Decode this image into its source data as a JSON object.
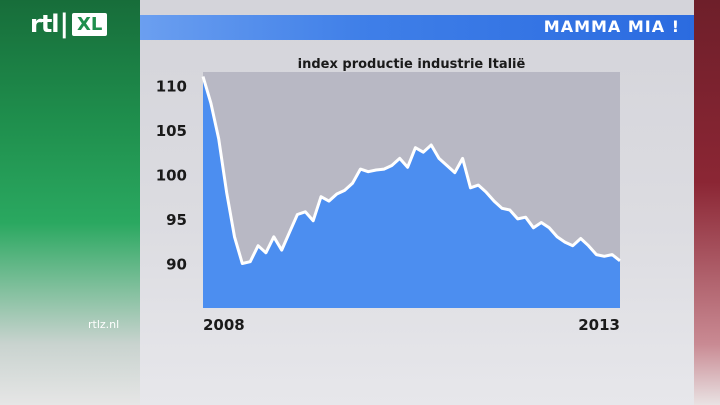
{
  "brand": {
    "logo_main": "rtl",
    "logo_badge": "XL",
    "site": "rtlz.nl"
  },
  "header": {
    "title": "MAMMA MIA !"
  },
  "chart_data": {
    "type": "area",
    "title": "index productie industrie Italië",
    "xlabel": "",
    "ylabel": "",
    "x_tick_labels": [
      "2008",
      "2013"
    ],
    "y_ticks": [
      90,
      95,
      100,
      105,
      110
    ],
    "ylim": [
      85.0,
      111.5
    ],
    "grid": false,
    "series": [
      {
        "values": [
          111.0,
          108.0,
          104.0,
          98.0,
          93.0,
          90.0,
          90.2,
          92.0,
          91.2,
          93.0,
          91.5,
          93.5,
          95.5,
          95.8,
          94.8,
          97.5,
          97.0,
          97.8,
          98.2,
          99.0,
          100.6,
          100.3,
          100.5,
          100.6,
          101.0,
          101.8,
          100.8,
          103.0,
          102.5,
          103.3,
          101.8,
          101.0,
          100.2,
          101.8,
          98.5,
          98.8,
          98.0,
          97.0,
          96.2,
          96.0,
          95.0,
          95.2,
          94.0,
          94.6,
          94.0,
          93.0,
          92.4,
          92.0,
          92.8,
          92.0,
          91.0,
          90.8,
          91.0,
          90.3
        ]
      }
    ]
  },
  "colors": {
    "area_fill": "#4c8ef0",
    "line": "#ffffff",
    "plot_bg": "#b8b8c4",
    "title_bar": "#3f7fe8"
  }
}
